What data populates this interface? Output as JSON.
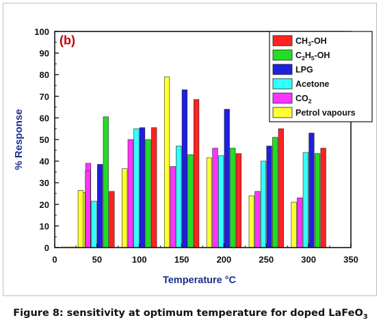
{
  "chart_data": {
    "type": "bar",
    "panel_label": "(b)",
    "xlabel": "Temperature",
    "xlabel_unit": "°C",
    "ylabel": "% Response",
    "xlim": [
      0,
      350
    ],
    "ylim": [
      0,
      100
    ],
    "x_ticks": [
      "0",
      "50",
      "100",
      "150",
      "200",
      "250",
      "300",
      "350"
    ],
    "y_ticks": [
      "0",
      "10",
      "20",
      "30",
      "40",
      "50",
      "60",
      "70",
      "80",
      "90",
      "100"
    ],
    "legend_position": "top-right",
    "x": [
      50,
      100,
      150,
      200,
      250,
      300
    ],
    "series": [
      {
        "name": "Petrol vapours",
        "color": "#ffff33",
        "values": [
          25.5,
          36.5,
          79,
          41.5,
          24,
          21
        ]
      },
      {
        "name": "CO2",
        "legend_main": "CO",
        "legend_sub": "2",
        "color": "#ff33ff",
        "values": [
          39,
          50,
          37.5,
          46,
          26,
          23
        ]
      },
      {
        "name": "Acetone",
        "legend_main": "Acetone",
        "color": "#33ffff",
        "values": [
          21.5,
          55,
          47,
          42.5,
          40,
          44
        ]
      },
      {
        "name": "LPG",
        "legend_main": "LPG",
        "color": "#1f1fe0",
        "values": [
          38.5,
          55.5,
          73,
          64,
          47,
          53
        ]
      },
      {
        "name": "C2H5-OH",
        "legend_main": "C",
        "legend_sub": "2",
        "legend_main2": "H",
        "legend_sub2": "5",
        "legend_main3": "-OH",
        "color": "#22dd22",
        "values": [
          60.5,
          50,
          43,
          46,
          51,
          43.5
        ]
      },
      {
        "name": "CH3-OH",
        "legend_main": "CH",
        "legend_sub": "3",
        "legend_main2": "-OH",
        "color": "#ff2222",
        "values": [
          26,
          55.5,
          68.5,
          43.5,
          55,
          46
        ]
      }
    ],
    "extra_bars_left": [
      {
        "series": "Petrol vapours",
        "value": 26.5
      },
      {
        "series": "CO2",
        "value": 35.5
      }
    ]
  },
  "caption": {
    "text": "Figure 8: sensitivity at optimum temperature for doped LaFeO",
    "sub": "3"
  }
}
